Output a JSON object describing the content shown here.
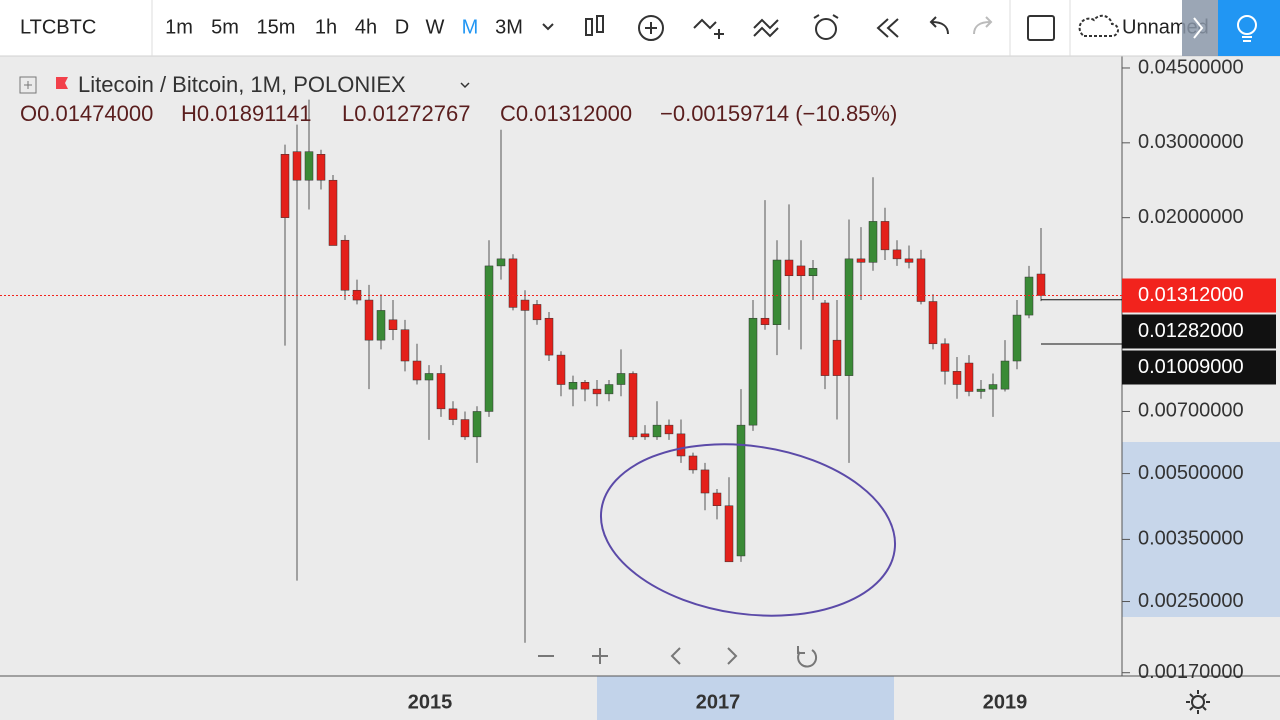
{
  "toolbar": {
    "symbol": "LTCBTC",
    "intervals": [
      "1m",
      "5m",
      "15m",
      "1h",
      "4h",
      "D",
      "W",
      "M",
      "3M"
    ],
    "active_interval": "M",
    "layout_name": "Unnamed"
  },
  "legend": {
    "title": "Litecoin / Bitcoin, 1M, POLONIEX",
    "ohlc": [
      "O0.01474000",
      "H0.01891141",
      "L0.01272767",
      "C0.01312000"
    ],
    "change": "−0.00159714 (−10.85%)"
  },
  "chart_data": {
    "type": "candlestick",
    "log_scale": true,
    "up_color": "#3a8a36",
    "down_color": "#e3211b",
    "ylim": [
      0.00167,
      0.0475
    ],
    "yticks": [
      {
        "value": 0.045,
        "label": "0.04500000"
      },
      {
        "value": 0.03,
        "label": "0.03000000"
      },
      {
        "value": 0.02,
        "label": "0.02000000"
      },
      {
        "value": 0.007,
        "label": "0.00700000"
      },
      {
        "value": 0.005,
        "label": "0.00500000"
      },
      {
        "value": 0.0035,
        "label": "0.00350000"
      },
      {
        "value": 0.0025,
        "label": "0.00250000"
      },
      {
        "value": 0.0017,
        "label": "0.00170000"
      }
    ],
    "price_tags": [
      {
        "value": 0.01312,
        "label": "0.01312000",
        "color": "#f2231d"
      },
      {
        "value": 0.01282,
        "label": "0.01282000",
        "color": "#111111"
      },
      {
        "value": 0.01009,
        "label": "0.01009000",
        "color": "#111111"
      }
    ],
    "time_labels": [
      "2015",
      "2017",
      "2019"
    ],
    "candles": [
      [
        0.0282,
        0.0297,
        0.01,
        0.02
      ],
      [
        0.0286,
        0.0331,
        0.0028,
        0.0245
      ],
      [
        0.0245,
        0.0379,
        0.0209,
        0.0286
      ],
      [
        0.0282,
        0.0289,
        0.0233,
        0.0245
      ],
      [
        0.0245,
        0.0252,
        0.0172,
        0.0172
      ],
      [
        0.0177,
        0.0182,
        0.0128,
        0.0135
      ],
      [
        0.0135,
        0.0143,
        0.0125,
        0.0128
      ],
      [
        0.0128,
        0.0139,
        0.0079,
        0.0103
      ],
      [
        0.0103,
        0.0132,
        0.0098,
        0.0121
      ],
      [
        0.0115,
        0.0128,
        0.0103,
        0.0109
      ],
      [
        0.0109,
        0.0115,
        0.0087,
        0.0092
      ],
      [
        0.0092,
        0.0101,
        0.0081,
        0.0083
      ],
      [
        0.0083,
        0.009,
        0.006,
        0.0086
      ],
      [
        0.0086,
        0.009,
        0.0068,
        0.0071
      ],
      [
        0.0071,
        0.0074,
        0.0065,
        0.0067
      ],
      [
        0.0067,
        0.007,
        0.006,
        0.0061
      ],
      [
        0.0061,
        0.0072,
        0.0053,
        0.007
      ],
      [
        0.007,
        0.0177,
        0.0068,
        0.0154
      ],
      [
        0.0154,
        0.0322,
        0.0143,
        0.016
      ],
      [
        0.016,
        0.0164,
        0.0121,
        0.0123
      ],
      [
        0.0128,
        0.0135,
        0.002,
        0.0121
      ],
      [
        0.0125,
        0.0128,
        0.0112,
        0.0115
      ],
      [
        0.0116,
        0.012,
        0.0092,
        0.0095
      ],
      [
        0.0095,
        0.0097,
        0.0076,
        0.0081
      ],
      [
        0.0079,
        0.0085,
        0.0072,
        0.0082
      ],
      [
        0.0082,
        0.0083,
        0.0074,
        0.0079
      ],
      [
        0.0079,
        0.0083,
        0.0072,
        0.0077
      ],
      [
        0.0077,
        0.0083,
        0.0074,
        0.0081
      ],
      [
        0.0081,
        0.0098,
        0.0076,
        0.0086
      ],
      [
        0.0086,
        0.0087,
        0.006,
        0.0061
      ],
      [
        0.0062,
        0.0065,
        0.006,
        0.0061
      ],
      [
        0.0061,
        0.0074,
        0.006,
        0.0065
      ],
      [
        0.0065,
        0.0067,
        0.006,
        0.0062
      ],
      [
        0.0062,
        0.0067,
        0.0053,
        0.0055
      ],
      [
        0.0055,
        0.0056,
        0.005,
        0.0051
      ],
      [
        0.0051,
        0.0053,
        0.0041,
        0.0045
      ],
      [
        0.0045,
        0.0046,
        0.0039,
        0.0042
      ],
      [
        0.0042,
        0.0049,
        0.0031,
        0.0031
      ],
      [
        0.0032,
        0.0079,
        0.0031,
        0.0065
      ],
      [
        0.0065,
        0.0128,
        0.0063,
        0.0116
      ],
      [
        0.0116,
        0.022,
        0.0109,
        0.0112
      ],
      [
        0.0112,
        0.0177,
        0.0095,
        0.0159
      ],
      [
        0.0159,
        0.0215,
        0.0109,
        0.0146
      ],
      [
        0.0154,
        0.0177,
        0.0098,
        0.0146
      ],
      [
        0.0146,
        0.0159,
        0.0128,
        0.0152
      ],
      [
        0.0126,
        0.0128,
        0.0079,
        0.0085
      ],
      [
        0.0103,
        0.0128,
        0.0067,
        0.0085
      ],
      [
        0.0085,
        0.0198,
        0.0053,
        0.016
      ],
      [
        0.016,
        0.019,
        0.0128,
        0.0157
      ],
      [
        0.0157,
        0.0249,
        0.015,
        0.0196
      ],
      [
        0.0196,
        0.0211,
        0.0159,
        0.0168
      ],
      [
        0.0168,
        0.0177,
        0.0154,
        0.016
      ],
      [
        0.016,
        0.0172,
        0.0152,
        0.0157
      ],
      [
        0.016,
        0.0168,
        0.0125,
        0.0127
      ],
      [
        0.0127,
        0.0132,
        0.0098,
        0.0101
      ],
      [
        0.0101,
        0.0104,
        0.0081,
        0.0087
      ],
      [
        0.0087,
        0.0094,
        0.0075,
        0.0081
      ],
      [
        0.0091,
        0.0095,
        0.0076,
        0.0078
      ],
      [
        0.0078,
        0.0083,
        0.0075,
        0.0079
      ],
      [
        0.0079,
        0.0086,
        0.0068,
        0.0081
      ],
      [
        0.0079,
        0.0103,
        0.0078,
        0.0092
      ],
      [
        0.0092,
        0.0128,
        0.0088,
        0.0118
      ],
      [
        0.0118,
        0.0154,
        0.0116,
        0.0145
      ],
      [
        0.01474,
        0.01891141,
        0.01272767,
        0.01312
      ]
    ]
  }
}
